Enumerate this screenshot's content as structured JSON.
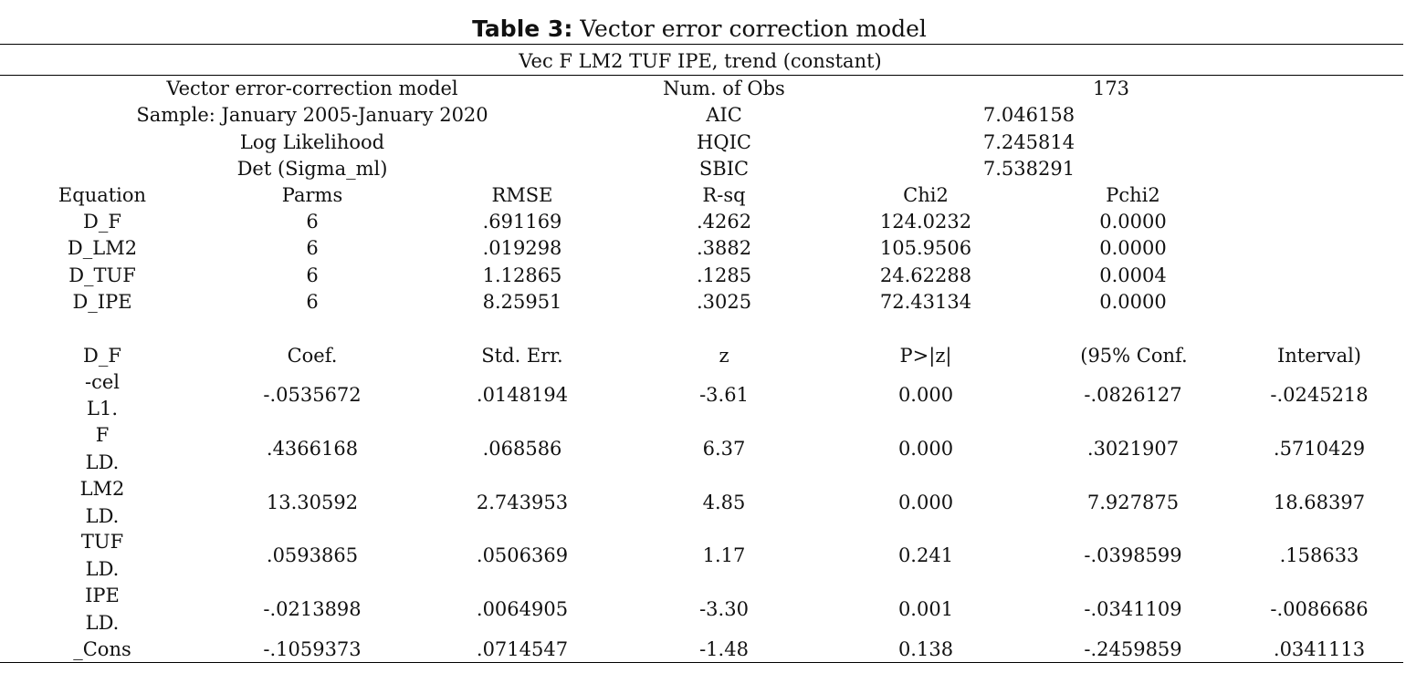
{
  "title": {
    "bold": "Table 3:",
    "rest": " Vector error correction model"
  },
  "subtitle": "Vec F LM2 TUF IPE, trend (constant)",
  "summary": {
    "left": [
      "Vector error-correction model",
      "Sample: January 2005-January 2020",
      "Log Likelihood",
      "Det (Sigma_ml)"
    ],
    "mid": [
      "Num. of Obs",
      "AIC",
      "HQIC",
      "SBIC"
    ],
    "right": [
      "173",
      "7.046158",
      "7.245814",
      "7.538291"
    ]
  },
  "equations": {
    "headers": [
      "Equation",
      "Parms",
      "RMSE",
      "R-sq",
      "Chi2",
      "Pchi2"
    ],
    "rows": [
      [
        "D_F",
        "6",
        ".691169",
        ".4262",
        "124.0232",
        "0.0000"
      ],
      [
        "D_LM2",
        "6",
        ".019298",
        ".3882",
        "105.9506",
        "0.0000"
      ],
      [
        "D_TUF",
        "6",
        "1.12865",
        ".1285",
        "24.62288",
        "0.0004"
      ],
      [
        "D_IPE",
        "6",
        "8.25951",
        ".3025",
        "72.43134",
        "0.0000"
      ]
    ]
  },
  "coefficients": {
    "headers": [
      "D_F",
      "Coef.",
      "Std. Err.",
      "z",
      "P>|z|",
      "(95% Conf.",
      "Interval)"
    ],
    "rows": [
      {
        "name": "-cel",
        "lag": "L1.",
        "values": [
          "-.0535672",
          ".0148194",
          "-3.61",
          "0.000",
          "-.0826127",
          "-.0245218"
        ]
      },
      {
        "name": "F",
        "lag": "LD.",
        "values": [
          ".4366168",
          ".068586",
          "6.37",
          "0.000",
          ".3021907",
          ".5710429"
        ]
      },
      {
        "name": "LM2",
        "lag": "LD.",
        "values": [
          "13.30592",
          "2.743953",
          "4.85",
          "0.000",
          "7.927875",
          "18.68397"
        ]
      },
      {
        "name": "TUF",
        "lag": "LD.",
        "values": [
          ".0593865",
          ".0506369",
          "1.17",
          "0.241",
          "-.0398599",
          ".158633"
        ]
      },
      {
        "name": "IPE",
        "lag": "LD.",
        "values": [
          "-.0213898",
          ".0064905",
          "-3.30",
          "0.001",
          "-.0341109",
          "-.0086686"
        ]
      },
      {
        "name": "_Cons",
        "lag": "",
        "values": [
          "-.1059373",
          ".0714547",
          "-1.48",
          "0.138",
          "-.2459859",
          ".0341113"
        ]
      }
    ]
  }
}
